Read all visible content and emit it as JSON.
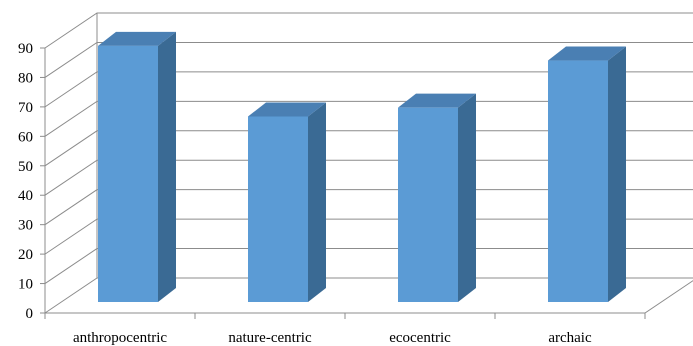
{
  "chart_data": {
    "type": "bar",
    "style": "3d-column",
    "categories": [
      "anthropocentric",
      "nature-centric",
      "ecocentric",
      "archaic"
    ],
    "values": [
      87,
      63,
      66,
      82
    ],
    "ylim": [
      0,
      90
    ],
    "yticks": [
      "0",
      "10",
      "20",
      "30",
      "40",
      "50",
      "60",
      "70",
      "80",
      "90"
    ],
    "grid": true,
    "colors": {
      "front": "#5b9bd5",
      "side": "#3a6a94",
      "top": "#4a7fb3",
      "grid": "#8c8c8c"
    }
  }
}
